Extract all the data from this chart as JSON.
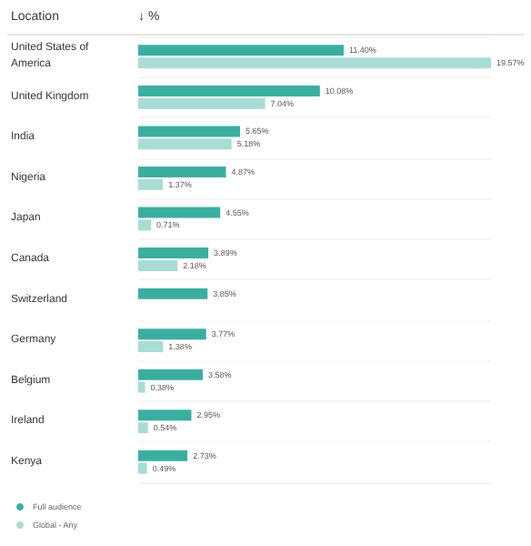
{
  "chart_data": {
    "type": "bar",
    "orientation": "horizontal",
    "xlabel": "↓ %",
    "ylabel": "Location",
    "categories": [
      "United States of America",
      "United Kingdom",
      "India",
      "Nigeria",
      "Japan",
      "Canada",
      "Switzerland",
      "Germany",
      "Belgium",
      "Ireland",
      "Kenya"
    ],
    "series": [
      {
        "name": "Full audience",
        "color": "#3aafa0",
        "values": [
          11.4,
          10.08,
          5.65,
          4.87,
          4.55,
          3.89,
          3.85,
          3.77,
          3.58,
          2.95,
          2.73
        ],
        "value_labels": [
          "11.40%",
          "10.08%",
          "5.65%",
          "4.87%",
          "4.55%",
          "3.89%",
          "3.85%",
          "3.77%",
          "3.58%",
          "2.95%",
          "2.73%"
        ]
      },
      {
        "name": "Global - Any",
        "color": "#a8dcd5",
        "values": [
          19.57,
          7.04,
          5.18,
          1.37,
          0.71,
          2.18,
          null,
          1.38,
          0.38,
          0.54,
          0.49
        ],
        "value_labels": [
          "19.57%",
          "7.04%",
          "5.18%",
          "1.37%",
          "0.71%",
          "2.18%",
          null,
          "1.38%",
          "0.38%",
          "0.54%",
          "0.49%"
        ]
      }
    ],
    "grid": "y",
    "legend": "bottom left"
  }
}
